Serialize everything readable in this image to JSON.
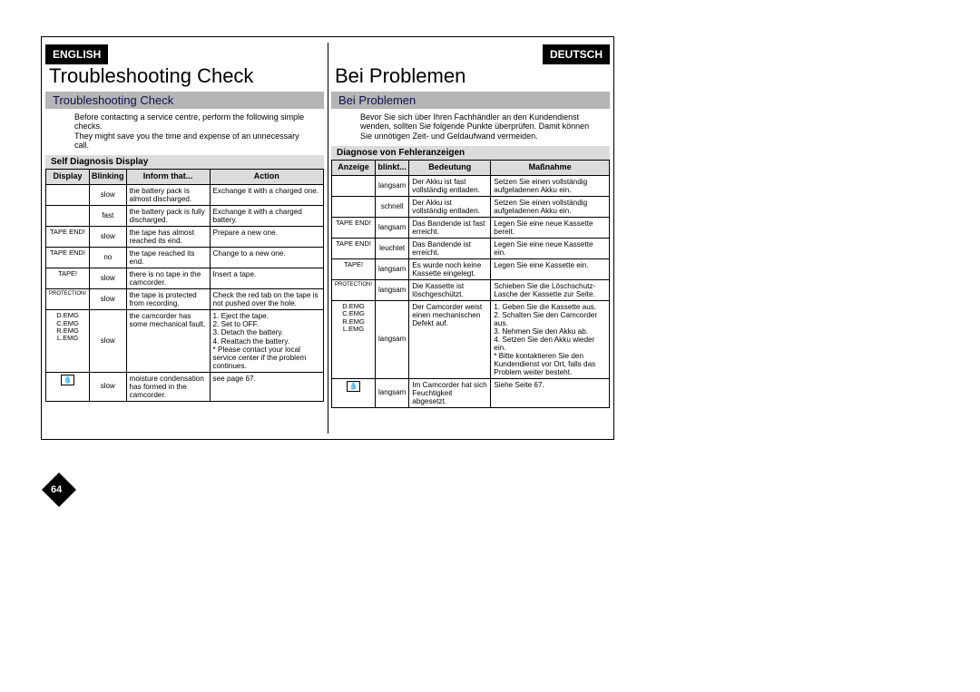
{
  "page_number": "64",
  "background_color": "#ffffff",
  "english": {
    "lang_tab": "ENGLISH",
    "title": "Troubleshooting Check",
    "subtitle": "Troubleshooting Check",
    "intro": "Before contacting a service centre, perform the following simple checks.\nThey might save you the time and expense of an unnecessary call.",
    "table_caption": "Self Diagnosis Display",
    "columns": [
      "Display",
      "Blinking",
      "Inform that...",
      "Action"
    ],
    "rows": [
      [
        "",
        "slow",
        "the battery pack is almost discharged.",
        "Exchange it with a charged one."
      ],
      [
        "",
        "fast",
        "the battery pack is fully discharged.",
        "Exchange it with a charged battery."
      ],
      [
        "TAPE END!",
        "slow",
        "the tape has almost reached its end.",
        "Prepare a new one."
      ],
      [
        "TAPE END!",
        "no",
        "the tape reached its end.",
        "Change to a new one."
      ],
      [
        "TAPE!",
        "slow",
        "there is no tape in the camcorder.",
        "Insert a tape."
      ],
      [
        "PROTECTION!",
        "slow",
        "the tape is protected from recording.",
        "Check the red tab on the tape is not pushed over the hole."
      ],
      [
        "D.EMG\nC.EMG\nR.EMG\nL.EMG",
        "slow",
        "the camcorder has some mechanical fault.",
        "1. Eject the tape.\n2. Set to OFF.\n3. Detach the battery.\n4. Reattach the battery.\n* Please contact your local service center if the problem continues."
      ],
      [
        "_ICON_",
        "slow",
        "moisture condensation has formed in the camcorder.",
        "see page 67."
      ]
    ]
  },
  "deutsch": {
    "lang_tab": "DEUTSCH",
    "title": "Bei Problemen",
    "subtitle": "Bei Problemen",
    "intro": "Bevor Sie sich über Ihren Fachhändler an den Kundendienst wenden, sollten Sie folgende Punkte überprüfen. Damit können Sie unnötigen Zeit- und Geldaufwand vermeiden.",
    "table_caption": "Diagnose von Fehleranzeigen",
    "columns": [
      "Anzeige",
      "blinkt...",
      "Bedeutung",
      "Maßnahme"
    ],
    "rows": [
      [
        "",
        "langsam",
        "Der Akku ist fast vollständig entladen.",
        "Setzen Sie einen vollständig aufgeladenen Akku ein."
      ],
      [
        "",
        "schnell",
        "Der Akku ist vollständig entladen.",
        "Setzen Sie einen vollständig aufgeladenen Akku ein."
      ],
      [
        "TAPE END!",
        "langsam",
        "Das Bandende ist fast erreicht.",
        "Legen Sie eine neue Kassette bereit."
      ],
      [
        "TAPE END!",
        "leuchtet",
        "Das Bandende ist erreicht.",
        "Legen Sie eine neue Kassette ein."
      ],
      [
        "TAPE!",
        "langsam",
        "Es wurde noch keine Kassette eingelegt.",
        "Legen Sie eine Kassette ein."
      ],
      [
        "PROTECTION!",
        "langsam",
        "Die Kassette ist löschgeschützt.",
        "Schieben Sie die Löschschutz-Lasche der Kassette zur Seite."
      ],
      [
        "D.EMG\nC.EMG\nR.EMG\nL.EMG",
        "langsam",
        "Der Camcorder weist einen mechanischen Defekt auf.",
        "1. Geben Sie die Kassette aus.\n2. Schalten Sie den Camcorder aus.\n3. Nehmen Sie den Akku ab.\n4. Setzen Sie den Akku wieder ein.\n* Bitte kontaktieren Sie den Kundendienst vor Ort, falls das Problem weiter besteht."
      ],
      [
        "_ICON_",
        "langsam",
        "Im Camcorder hat sich Feuchtigkeit abgesetzt.",
        "Siehe Seite 67."
      ]
    ]
  }
}
